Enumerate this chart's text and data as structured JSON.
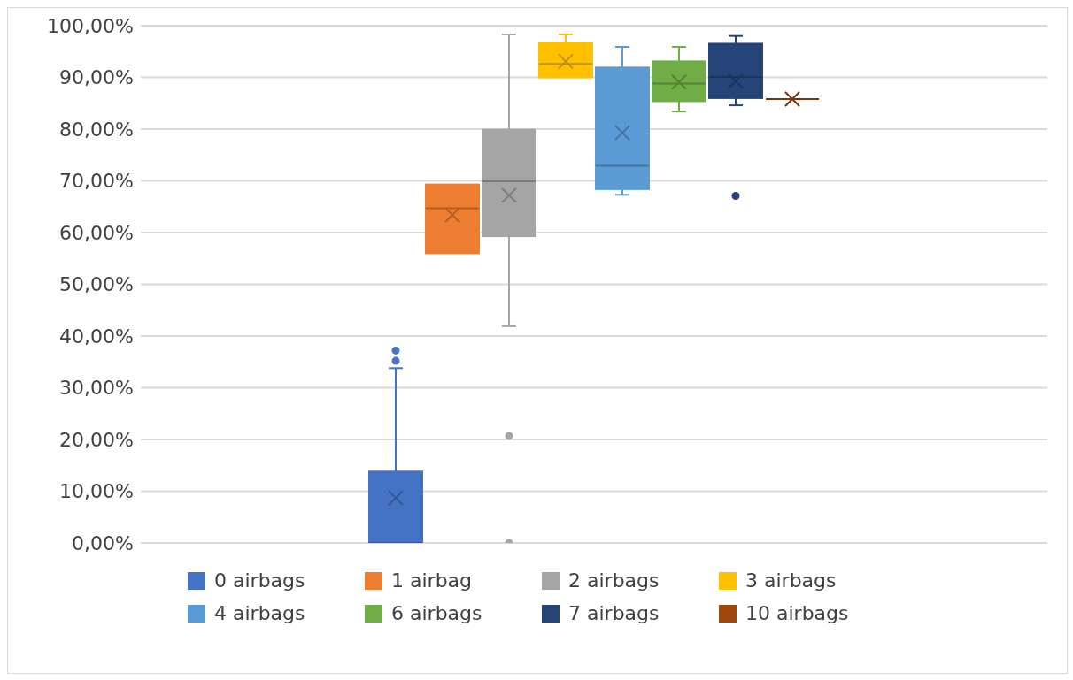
{
  "chart_data": {
    "type": "box",
    "categories": [
      null
    ],
    "ylim": [
      0,
      100
    ],
    "yticks": [
      {
        "value": 0,
        "label": "0,00%"
      },
      {
        "value": 10,
        "label": "10,00%"
      },
      {
        "value": 20,
        "label": "20,00%"
      },
      {
        "value": 30,
        "label": "30,00%"
      },
      {
        "value": 40,
        "label": "40,00%"
      },
      {
        "value": 50,
        "label": "50,00%"
      },
      {
        "value": 60,
        "label": "60,00%"
      },
      {
        "value": 70,
        "label": "70,00%"
      },
      {
        "value": 80,
        "label": "80,00%"
      },
      {
        "value": 90,
        "label": "90,00%"
      },
      {
        "value": 100,
        "label": "100,00%"
      }
    ],
    "grid": "y",
    "legend": "bottom",
    "series": [
      {
        "name": "0 airbags",
        "color": "#4472c4",
        "boxes": [
          {
            "low": 0,
            "q1": 0,
            "median": 0,
            "q3": 13.8,
            "high": 33.8,
            "mean": 8.7,
            "outliers": [
              35.2,
              37.2
            ]
          }
        ]
      },
      {
        "name": "1 airbag",
        "color": "#ed7d31",
        "boxes": [
          {
            "low": 56,
            "q1": 56,
            "median": 64.7,
            "q3": 69.3,
            "high": 69.3,
            "mean": 63.4
          }
        ]
      },
      {
        "name": "2 airbags",
        "color": "#a5a5a5",
        "boxes": [
          {
            "low": 41.9,
            "q1": 59.3,
            "median": 69.9,
            "q3": 79.9,
            "high": 98.3,
            "mean": 67.2,
            "outliers": [
              20.7,
              0
            ]
          }
        ]
      },
      {
        "name": "3 airbags",
        "color": "#ffc000",
        "boxes": [
          {
            "low": 90,
            "q1": 90,
            "median": 92.6,
            "q3": 96.6,
            "high": 98.3,
            "mean": 93.1
          }
        ]
      },
      {
        "name": "4 airbags",
        "color": "#5b9bd5",
        "boxes": [
          {
            "low": 67.3,
            "q1": 68.4,
            "median": 72.9,
            "q3": 91.9,
            "high": 95.9,
            "mean": 79.3
          }
        ]
      },
      {
        "name": "6 airbags",
        "color": "#70ad47",
        "boxes": [
          {
            "low": 83.4,
            "q1": 85.4,
            "median": 88.8,
            "q3": 93.1,
            "high": 95.9,
            "mean": 89.1
          }
        ]
      },
      {
        "name": "7 airbags",
        "color": "#264478",
        "boxes": [
          {
            "low": 84.6,
            "q1": 86,
            "median": 90.1,
            "q3": 96.5,
            "high": 98,
            "mean": 89.3,
            "outliers": [
              67.1
            ]
          }
        ]
      },
      {
        "name": "10 airbags",
        "color": "#9e480e",
        "boxes": [
          {
            "low": 85.8,
            "q1": 85.8,
            "median": 85.8,
            "q3": 85.8,
            "high": 85.8,
            "mean": 85.8
          }
        ]
      }
    ]
  }
}
